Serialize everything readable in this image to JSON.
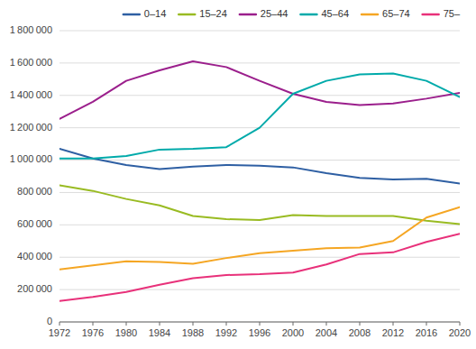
{
  "chart_data": {
    "type": "line",
    "x": [
      1972,
      1976,
      1980,
      1984,
      1988,
      1992,
      1996,
      2000,
      2004,
      2008,
      2012,
      2016,
      2020
    ],
    "series": [
      {
        "name": "0–14",
        "color": "#2E5FA3",
        "values": [
          1070000,
          1010000,
          970000,
          945000,
          960000,
          970000,
          965000,
          955000,
          920000,
          890000,
          880000,
          885000,
          855000
        ]
      },
      {
        "name": "15–24",
        "color": "#99BB22",
        "values": [
          845000,
          810000,
          760000,
          720000,
          655000,
          635000,
          630000,
          660000,
          655000,
          655000,
          655000,
          625000,
          605000
        ]
      },
      {
        "name": "25–44",
        "color": "#9B1F8C",
        "values": [
          1255000,
          1360000,
          1490000,
          1555000,
          1610000,
          1575000,
          1490000,
          1410000,
          1360000,
          1340000,
          1350000,
          1380000,
          1415000
        ]
      },
      {
        "name": "45–64",
        "color": "#00AAAA",
        "values": [
          1010000,
          1010000,
          1025000,
          1065000,
          1070000,
          1080000,
          1200000,
          1410000,
          1490000,
          1530000,
          1535000,
          1490000,
          1390000
        ]
      },
      {
        "name": "65–74",
        "color": "#F5A623",
        "values": [
          325000,
          350000,
          375000,
          370000,
          360000,
          395000,
          425000,
          440000,
          455000,
          460000,
          500000,
          645000,
          710000
        ]
      },
      {
        "name": "75–",
        "color": "#E8317A",
        "values": [
          130000,
          155000,
          185000,
          230000,
          270000,
          290000,
          295000,
          305000,
          355000,
          420000,
          430000,
          495000,
          545000
        ]
      }
    ],
    "xlim": [
      1972,
      2020
    ],
    "xticks": [
      1972,
      1976,
      1980,
      1984,
      1988,
      1992,
      1996,
      2000,
      2004,
      2008,
      2012,
      2016,
      2020
    ],
    "ylim": [
      0,
      1800000
    ],
    "yticks": [
      0,
      {
        "value": 200000,
        "label": "200 000"
      },
      {
        "value": 400000,
        "label": "400 000"
      },
      {
        "value": 600000,
        "label": "600 000"
      },
      {
        "value": 800000,
        "label": "800 000"
      },
      {
        "value": 1000000,
        "label": "1 000 000"
      },
      {
        "value": 1200000,
        "label": "1 200 000"
      },
      {
        "value": 1400000,
        "label": "1 400 000"
      },
      {
        "value": 1600000,
        "label": "1 600 000"
      },
      {
        "value": 1800000,
        "label": "1 800 000"
      }
    ],
    "grid": true,
    "legend": "upper right"
  }
}
